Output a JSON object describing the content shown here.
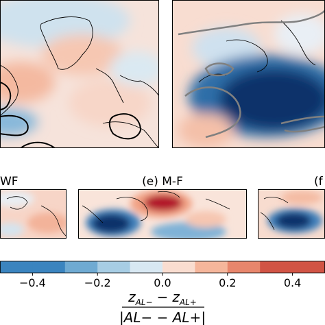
{
  "chart_data": {
    "type": "heatmap",
    "title": "",
    "panels": [
      {
        "id": "top-left",
        "label": "",
        "pattern": "weak-mixed",
        "contour_color": "#000000"
      },
      {
        "id": "top-right",
        "label": "",
        "pattern": "strong-negative-atlantic",
        "contour_color": "#808080"
      },
      {
        "id": "d",
        "label": "WF",
        "pattern": "weak-positive"
      },
      {
        "id": "e",
        "label": "(e) M-F",
        "pattern": "positive-north-negative-south"
      },
      {
        "id": "f",
        "label": "(f",
        "pattern": "negative-west"
      }
    ],
    "colorbar": {
      "orientation": "horizontal",
      "ticks": [
        "−0.4",
        "−0.2",
        "0.0",
        "0.2",
        "0.4"
      ],
      "tick_values": [
        -0.4,
        -0.2,
        0.0,
        0.2,
        0.4
      ],
      "bounds": [
        -0.5,
        0.5
      ],
      "step": 0.1,
      "colors": [
        "#3b84bf",
        "#6faad2",
        "#a7cde4",
        "#d8e8f2",
        "#f9ddd0",
        "#f5b69b",
        "#e8866c",
        "#d15445"
      ]
    },
    "colorbar_label": {
      "numerator": "z",
      "num_sub_1": "AL−",
      "minus": "−",
      "num_sub_2": "AL+",
      "denominator": "|AL− − AL+|"
    }
  }
}
